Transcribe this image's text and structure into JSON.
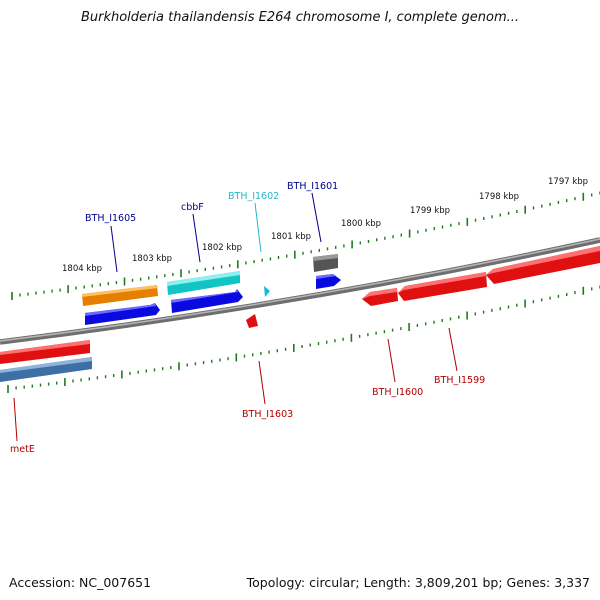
{
  "title": "Burkholderia thailandensis E264 chromosome I, complete genom...",
  "footer": {
    "accession": "Accession: NC_007651",
    "topology": "Topology: circular; Length: 3,809,201 bp; Genes: 3,337"
  },
  "scale_labels": [
    "1797 kbp",
    "1798 kbp",
    "1799 kbp",
    "1800 kbp",
    "1801 kbp",
    "1802 kbp",
    "1803 kbp",
    "1804 kbp"
  ],
  "gene_labels": {
    "bth_i1605": "BTH_I1605",
    "cbbf": "cbbF",
    "bth_i1602": "BTH_I1602",
    "bth_i1601": "BTH_I1601",
    "bth_i1603": "BTH_I1603",
    "bth_i1600": "BTH_I1600",
    "bth_i1599": "BTH_I1599",
    "mete": "metE"
  },
  "colors": {
    "backbone": "#808080",
    "tick": "#1f7a1f",
    "feature_red": "#e01010",
    "feature_blue": "#0a0ae0",
    "feature_orange": "#e67e00",
    "feature_cyan": "#11c5c5",
    "feature_gray": "#555555",
    "feature_steel": "#3b6fa5",
    "label_blue": "#00008b",
    "label_red": "#b00000",
    "label_cyan": "#22b8c8"
  }
}
